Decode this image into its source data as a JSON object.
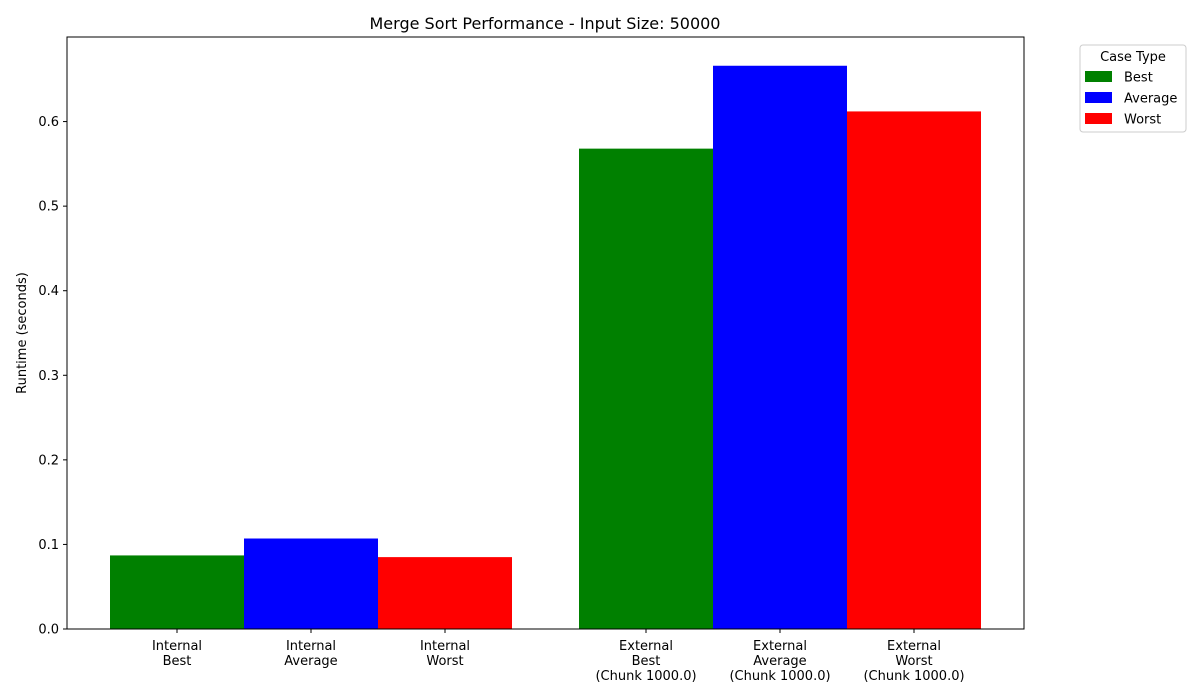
{
  "chart_data": {
    "type": "bar",
    "title": "Merge Sort Performance - Input Size: 50000",
    "xlabel": "",
    "ylabel": "Runtime (seconds)",
    "ylim": [
      0,
      0.7
    ],
    "yticks": [
      "0.0",
      "0.1",
      "0.2",
      "0.3",
      "0.4",
      "0.5",
      "0.6"
    ],
    "categories": [
      [
        "Internal",
        "Best"
      ],
      [
        "Internal",
        "Average"
      ],
      [
        "Internal",
        "Worst"
      ],
      [
        "External",
        "Best",
        "(Chunk 1000.0)"
      ],
      [
        "External",
        "Average",
        "(Chunk 1000.0)"
      ],
      [
        "External",
        "Worst",
        "(Chunk 1000.0)"
      ]
    ],
    "values": [
      0.087,
      0.107,
      0.085,
      0.568,
      0.666,
      0.612
    ],
    "bar_case": [
      "Best",
      "Average",
      "Worst",
      "Best",
      "Average",
      "Worst"
    ],
    "grid": false,
    "legend": {
      "title": "Case Type",
      "placement": "top-right outside",
      "entries": [
        {
          "name": "Best",
          "color": "#008000"
        },
        {
          "name": "Average",
          "color": "#0000ff"
        },
        {
          "name": "Worst",
          "color": "#ff0000"
        }
      ]
    }
  }
}
